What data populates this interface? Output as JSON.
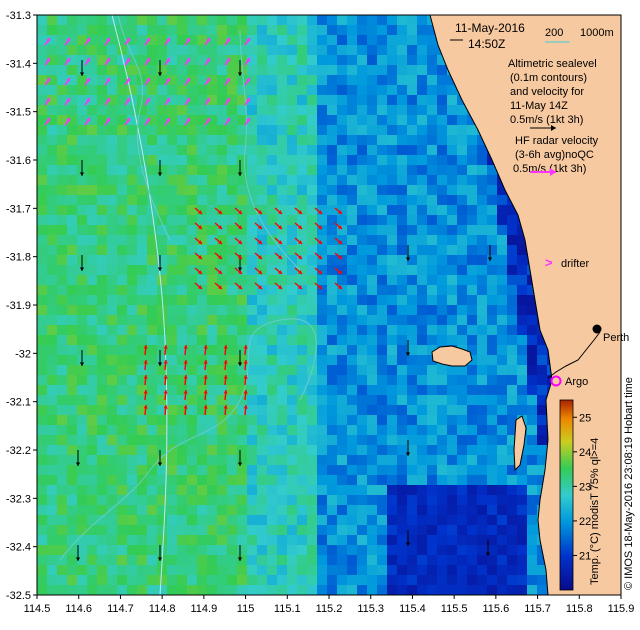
{
  "map": {
    "date_label": "11-May-2016",
    "time_label": "14:50Z",
    "bathy_200": "200",
    "bathy_1000": "1000m",
    "altimetry_lines": [
      "Altimetric sealevel",
      "(0.1m contours)",
      "and velocity for",
      "11-May 14Z",
      "0.5m/s (1kt 3h)"
    ],
    "hf_lines": [
      "HF radar velocity",
      "(3-6h avg)noQC",
      "0.5m/s (1kt 3h)"
    ],
    "drifter_label": "drifter",
    "drifter_marker": ">",
    "city_label": "Perth",
    "argo_label": "Argo",
    "credit": "© IMOS 18-May-2016 23:08:19 Hobart time",
    "colorbar_label": "Temp. (°C) modisT 75% ql>=4",
    "colorbar_ticks": [
      "21",
      "22",
      "23",
      "24",
      "25"
    ],
    "colorbar_range": [
      20,
      25.5
    ],
    "x_ticks": [
      "114.5",
      "114.6",
      "114.7",
      "114.8",
      "114.9",
      "115",
      "115.1",
      "115.2",
      "115.3",
      "115.4",
      "115.5",
      "115.6",
      "115.7",
      "115.8",
      "115.9"
    ],
    "y_ticks": [
      "-31.3",
      "-31.4",
      "-31.5",
      "-31.6",
      "-31.7",
      "-31.8",
      "-31.9",
      "-32",
      "-32.1",
      "-32.2",
      "-32.3",
      "-32.4",
      "-32.5"
    ],
    "lon_range": [
      114.5,
      115.9
    ],
    "lat_range": [
      -32.5,
      -31.3
    ],
    "colors": {
      "land": "#f7c9a0",
      "hf_arrow": "#ff0000",
      "drifter": "#ff33ff",
      "alt_arrow": "#000000",
      "argo": "#ff00ff",
      "contour": "#bfe6ff",
      "bathy_line": "#66cccc"
    }
  }
}
